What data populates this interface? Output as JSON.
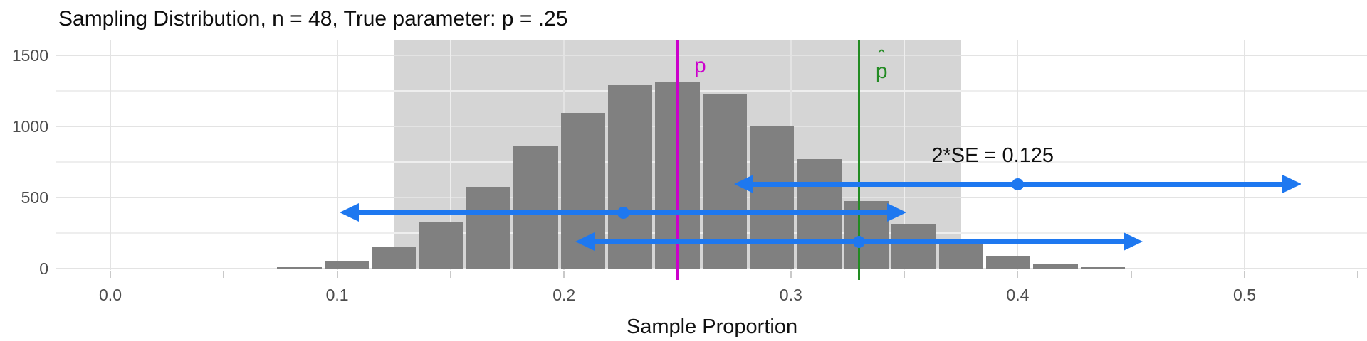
{
  "chart_data": {
    "type": "histogram",
    "title": "Sampling Distribution, n = 48, True parameter: p = .25",
    "xlabel": "Sample Proportion",
    "n": 48,
    "true_p": 0.25,
    "p_hat": 0.33,
    "bin_width": 0.0208,
    "grid": true,
    "x_axis": {
      "major": [
        0,
        0.1,
        0.2,
        0.3,
        0.4,
        0.5
      ],
      "labels": [
        "0.0",
        "0.1",
        "0.2",
        "0.3",
        "0.4",
        "0.5"
      ],
      "minor": [
        0.05,
        0.15,
        0.25,
        0.35,
        0.45,
        0.55
      ],
      "range": [
        -0.026,
        0.554
      ]
    },
    "y_axis": {
      "major": [
        0,
        500,
        1000,
        1500
      ],
      "labels": [
        "0",
        "500",
        "1000",
        "1500"
      ],
      "minor": [
        250,
        750,
        1250
      ],
      "range": [
        0,
        1610
      ]
    },
    "bins": [
      {
        "center": 0.0833,
        "count": 10
      },
      {
        "center": 0.1042,
        "count": 50
      },
      {
        "center": 0.125,
        "count": 155
      },
      {
        "center": 0.1458,
        "count": 330
      },
      {
        "center": 0.1667,
        "count": 575
      },
      {
        "center": 0.1875,
        "count": 860
      },
      {
        "center": 0.2083,
        "count": 1095
      },
      {
        "center": 0.2292,
        "count": 1295
      },
      {
        "center": 0.25,
        "count": 1310
      },
      {
        "center": 0.2708,
        "count": 1225
      },
      {
        "center": 0.2917,
        "count": 1000
      },
      {
        "center": 0.3125,
        "count": 770
      },
      {
        "center": 0.3333,
        "count": 475
      },
      {
        "center": 0.3542,
        "count": 310
      },
      {
        "center": 0.375,
        "count": 175
      },
      {
        "center": 0.3958,
        "count": 85
      },
      {
        "center": 0.4167,
        "count": 30
      },
      {
        "center": 0.4375,
        "count": 8
      }
    ],
    "band": {
      "from": 0.125,
      "to": 0.375
    },
    "vlines": [
      {
        "x": 0.25,
        "label": "p",
        "color_key": "p_line"
      },
      {
        "x": 0.33,
        "label": "p̂",
        "color_key": "p_hat_line"
      }
    ],
    "arrows": [
      {
        "center": 0.4,
        "half_width": 0.125,
        "y_count": 595
      },
      {
        "center": 0.226,
        "half_width": 0.125,
        "y_count": 395
      },
      {
        "center": 0.33,
        "half_width": 0.125,
        "y_count": 190
      }
    ],
    "annotations": {
      "se_text": "2*SE = 0.125",
      "se_x": 0.362,
      "se_y_count": 875,
      "p_label": "p",
      "p_label_x": 0.26,
      "p_hat_accent": "ˆ",
      "p_hat_letter": "p",
      "p_hat_label_x": 0.34,
      "labels_y_count": 1510
    }
  },
  "colors": {
    "bar": "#808080",
    "band": "#d5d5d5",
    "grid_major": "#e3e3e3",
    "grid_minor": "#eeeeee",
    "arrow": "#1e78f0",
    "p_line": "#cc00cc",
    "p_hat_line": "#228b22",
    "axis_tick": "#c9c9c9",
    "tick_label": "#4d4d4d",
    "text": "#0d0d0d"
  }
}
